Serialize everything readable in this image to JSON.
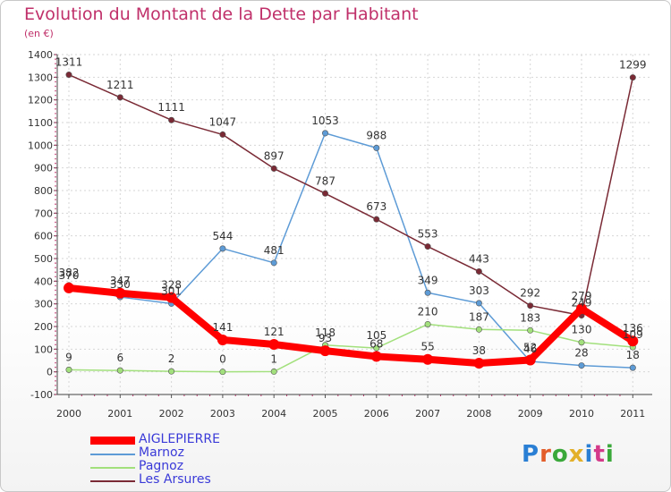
{
  "title": "Evolution du Montant de la Dette par Habitant",
  "unit_label": "(en €)",
  "logo": {
    "text": "Proxiti",
    "letter_colors": [
      "#2a7fd4",
      "#e35d2a",
      "#3aa83a",
      "#e3b02a",
      "#2a7fd4",
      "#d43a8a",
      "#3aa83a"
    ]
  },
  "chart_data": {
    "type": "line",
    "title": "Evolution du Montant de la Dette par Habitant",
    "subtitle": "(en €)",
    "xlabel": "",
    "ylabel": "",
    "x": [
      "2000",
      "2001",
      "2002",
      "2003",
      "2004",
      "2005",
      "2006",
      "2007",
      "2008",
      "2009",
      "2010",
      "2011"
    ],
    "ylim": [
      -100,
      1400
    ],
    "yticks": [
      -100,
      0,
      100,
      200,
      300,
      400,
      500,
      600,
      700,
      800,
      900,
      1000,
      1100,
      1200,
      1300,
      1400
    ],
    "grid": true,
    "legend_position": "bottom-left",
    "series": [
      {
        "name": "AIGLEPIERRE",
        "color": "#ff0000",
        "emphasis": true,
        "values": [
          370,
          347,
          328,
          141,
          121,
          93,
          68,
          55,
          38,
          52,
          279,
          136
        ],
        "labels": [
          "370",
          "347",
          "328",
          "141",
          "121",
          "93",
          "68",
          "55",
          "38",
          "52",
          "279",
          "136"
        ]
      },
      {
        "name": "Marnoz",
        "color": "#5d9bd6",
        "values": [
          382,
          330,
          301,
          544,
          481,
          1053,
          988,
          349,
          303,
          46,
          28,
          18
        ],
        "labels": [
          "382",
          "330",
          "301",
          "544",
          "481",
          "1053",
          "988",
          "349",
          "303",
          "46",
          "28",
          "18"
        ]
      },
      {
        "name": "Pagnoz",
        "color": "#a2e07c",
        "values": [
          9,
          6,
          2,
          0,
          1,
          118,
          105,
          210,
          187,
          183,
          130,
          109
        ],
        "labels": [
          "9",
          "6",
          "2",
          "0",
          "1",
          "118",
          "105",
          "210",
          "187",
          "183",
          "130",
          "109"
        ]
      },
      {
        "name": "Les Arsures",
        "color": "#7a2a35",
        "values": [
          1311,
          1211,
          1111,
          1047,
          897,
          787,
          673,
          553,
          443,
          292,
          249,
          1299
        ],
        "labels": [
          "1311",
          "1211",
          "1111",
          "1047",
          "897",
          "787",
          "673",
          "553",
          "443",
          "292",
          "249",
          "1299"
        ]
      }
    ]
  }
}
